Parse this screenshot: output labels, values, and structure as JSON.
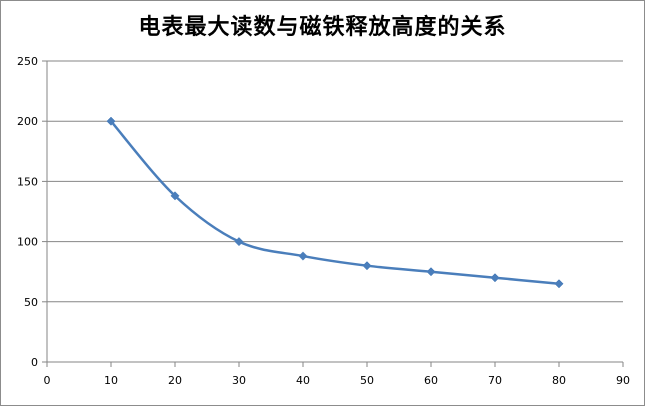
{
  "chart_data": {
    "type": "line",
    "title": "电表最大读数与磁铁释放高度的关系",
    "xlabel": "",
    "ylabel": "",
    "xlim": [
      0,
      90
    ],
    "ylim": [
      0,
      250
    ],
    "x_ticks": [
      0,
      10,
      20,
      30,
      40,
      50,
      60,
      70,
      80,
      90
    ],
    "y_ticks": [
      0,
      50,
      100,
      150,
      200,
      250
    ],
    "grid": true,
    "legend": "none",
    "smooth": true,
    "series": [
      {
        "x": [
          10,
          20,
          30,
          40,
          50,
          60,
          70,
          80
        ],
        "values": [
          200,
          138,
          100,
          88,
          80,
          75,
          70,
          65
        ],
        "color": "#4a7ebb",
        "marker": "diamond"
      }
    ],
    "colors": {
      "gridline": "#868686",
      "axis": "#868686"
    }
  }
}
